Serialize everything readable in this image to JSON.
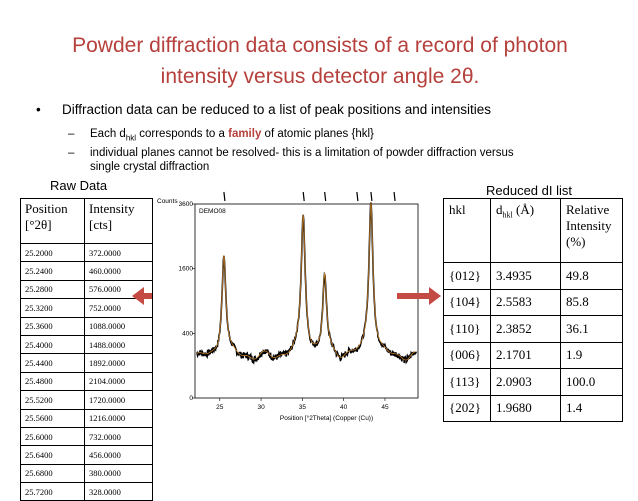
{
  "slide": {
    "title_line1": "Powder diffraction data consists of a record of photon",
    "title_line2": "intensity versus detector angle 2θ.",
    "bullet": "•",
    "bullet_text": "Diffraction data can be reduced to a list of peak positions and intensities",
    "dash": "–",
    "sub1_pre": "Each d",
    "sub1_sub": "hkl",
    "sub1_mid": " corresponds to a ",
    "sub1_family": "family",
    "sub1_post": " of atomic planes {hkl}",
    "sub2_line1": "individual planes cannot be resolved- this is a limitation of powder diffraction versus",
    "sub2_line2": "single crystal diffraction",
    "accent_color": "#b5403c"
  },
  "raw": {
    "caption": "Raw Data",
    "header_position_1": "Position",
    "header_position_2": "[°2θ]",
    "header_intensity_1": "Intensity",
    "header_intensity_2": "[cts]",
    "rows": [
      [
        "25.2000",
        "372.0000"
      ],
      [
        "25.2400",
        "460.0000"
      ],
      [
        "25.2800",
        "576.0000"
      ],
      [
        "25.3200",
        "752.0000"
      ],
      [
        "25.3600",
        "1088.0000"
      ],
      [
        "25.4000",
        "1488.0000"
      ],
      [
        "25.4400",
        "1892.0000"
      ],
      [
        "25.4800",
        "2104.0000"
      ],
      [
        "25.5200",
        "1720.0000"
      ],
      [
        "25.5600",
        "1216.0000"
      ],
      [
        "25.6000",
        "732.0000"
      ],
      [
        "25.6400",
        "456.0000"
      ],
      [
        "25.6800",
        "380.0000"
      ],
      [
        "25.7200",
        "328.0000"
      ]
    ]
  },
  "reduced": {
    "caption": "Reduced dI list",
    "header_hkl": "hkl",
    "header_d_pre": "d",
    "header_d_sub": "hkl",
    "header_d_unit": " (Å)",
    "header_rel_1": "Relative",
    "header_rel_2": "Intensity",
    "header_rel_3": "(%)",
    "rows": [
      [
        "{012}",
        "3.4935",
        "49.8"
      ],
      [
        "{104}",
        "2.5583",
        "85.8"
      ],
      [
        "{110}",
        "2.3852",
        "36.1"
      ],
      [
        "{006}",
        "2.1701",
        "1.9"
      ],
      [
        "{113}",
        "2.0903",
        "100.0"
      ],
      [
        "{202}",
        "1.9680",
        "1.4"
      ]
    ]
  },
  "chart_data": {
    "type": "line",
    "ylabel": "Counts",
    "xlabel": "Position [°2Theta] (Copper (Cu))",
    "sample_label": "DEMO08",
    "xlim": [
      22,
      49
    ],
    "ylim": [
      0,
      3600
    ],
    "x_ticks": [
      "25",
      "30",
      "35",
      "40",
      "45"
    ],
    "y_ticks": [
      "0",
      "400",
      "1600",
      "3600"
    ],
    "y_scale": "sqrt",
    "peaks": [
      {
        "x": 25.5,
        "y": 1820
      },
      {
        "x": 35.1,
        "y": 3050
      },
      {
        "x": 37.7,
        "y": 1300
      },
      {
        "x": 43.3,
        "y": 3550
      },
      {
        "x": 52.5,
        "y": 40
      }
    ],
    "background": 160,
    "marker_positions": [
      25.5,
      35.1,
      37.7,
      41.6,
      43.3,
      46.1
    ],
    "line_color": "#000000",
    "fit_color": "#d98b2b"
  }
}
